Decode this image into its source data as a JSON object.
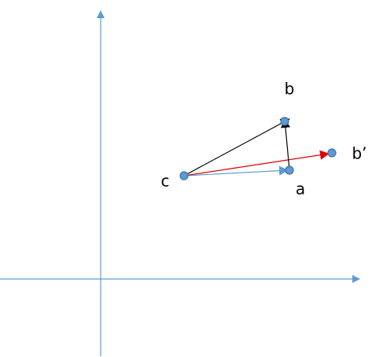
{
  "nodes": [
    {
      "label": "b"
    },
    {
      "label": "b’"
    },
    {
      "label": "c"
    },
    {
      "label": "a"
    }
  ]
}
